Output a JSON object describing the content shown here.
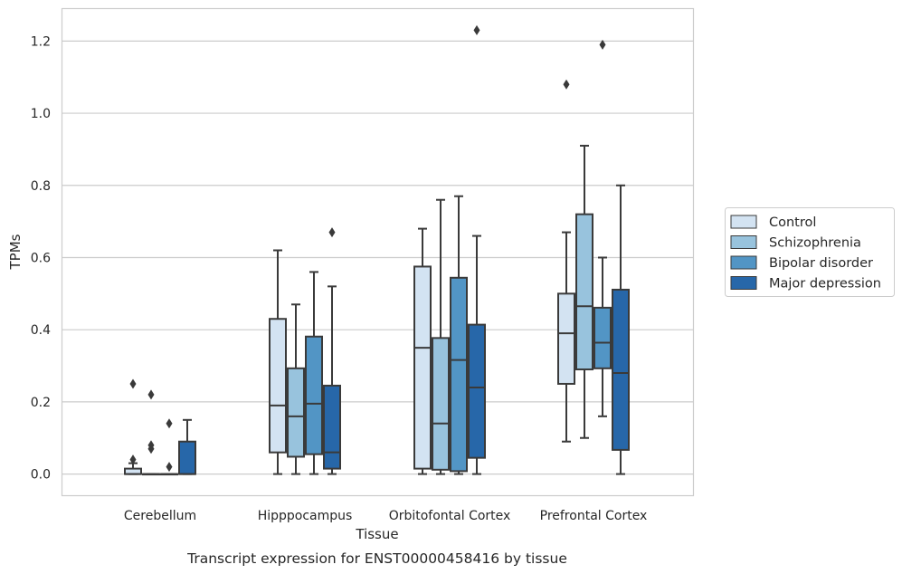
{
  "chart_data": {
    "type": "box",
    "caption": "Transcript expression for ENST00000458416 by tissue",
    "xlabel": "Tissue",
    "ylabel": "TPMs",
    "ylim": [
      -0.06,
      1.29
    ],
    "yticks": [
      0.0,
      0.2,
      0.4,
      0.6,
      0.8,
      1.0,
      1.2
    ],
    "ytick_labels": [
      "0.0",
      "0.2",
      "0.4",
      "0.6",
      "0.8",
      "1.0",
      "1.2"
    ],
    "grid": "horizontal",
    "legend_position": "right",
    "categories": [
      "Cerebellum",
      "Hipppocampus",
      "Orbitofontal Cortex",
      "Prefrontal Cortex"
    ],
    "series": [
      {
        "name": "Control",
        "color": "#d3e3f2",
        "boxes": [
          {
            "whislo": 0.0,
            "q1": 0.0,
            "med": 0.0,
            "q3": 0.015,
            "whishi": 0.03,
            "fliers": [
              0.04,
              0.25
            ]
          },
          {
            "whislo": 0.0,
            "q1": 0.06,
            "med": 0.19,
            "q3": 0.43,
            "whishi": 0.62,
            "fliers": []
          },
          {
            "whislo": 0.0,
            "q1": 0.015,
            "med": 0.35,
            "q3": 0.575,
            "whishi": 0.68,
            "fliers": []
          },
          {
            "whislo": 0.09,
            "q1": 0.25,
            "med": 0.39,
            "q3": 0.5,
            "whishi": 0.67,
            "fliers": [
              1.08
            ]
          }
        ]
      },
      {
        "name": "Schizophrenia",
        "color": "#98c3dd",
        "boxes": [
          {
            "whislo": 0.0,
            "q1": 0.0,
            "med": 0.0,
            "q3": 0.0,
            "whishi": 0.0,
            "fliers": [
              0.07,
              0.08,
              0.22
            ]
          },
          {
            "whislo": 0.0,
            "q1": 0.048,
            "med": 0.16,
            "q3": 0.293,
            "whishi": 0.47,
            "fliers": []
          },
          {
            "whislo": 0.0,
            "q1": 0.012,
            "med": 0.14,
            "q3": 0.377,
            "whishi": 0.76,
            "fliers": []
          },
          {
            "whislo": 0.1,
            "q1": 0.29,
            "med": 0.465,
            "q3": 0.72,
            "whishi": 0.91,
            "fliers": []
          }
        ]
      },
      {
        "name": "Bipolar disorder",
        "color": "#5295c5",
        "boxes": [
          {
            "whislo": 0.0,
            "q1": 0.0,
            "med": 0.0,
            "q3": 0.0,
            "whishi": 0.0,
            "fliers": [
              0.02,
              0.14
            ]
          },
          {
            "whislo": 0.0,
            "q1": 0.055,
            "med": 0.195,
            "q3": 0.381,
            "whishi": 0.56,
            "fliers": []
          },
          {
            "whislo": 0.0,
            "q1": 0.008,
            "med": 0.316,
            "q3": 0.544,
            "whishi": 0.77,
            "fliers": []
          },
          {
            "whislo": 0.16,
            "q1": 0.293,
            "med": 0.364,
            "q3": 0.461,
            "whishi": 0.6,
            "fliers": [
              1.19
            ]
          }
        ]
      },
      {
        "name": "Major depression",
        "color": "#2767a9",
        "boxes": [
          {
            "whislo": 0.0,
            "q1": 0.0,
            "med": 0.0,
            "q3": 0.09,
            "whishi": 0.15,
            "fliers": []
          },
          {
            "whislo": 0.0,
            "q1": 0.015,
            "med": 0.06,
            "q3": 0.245,
            "whishi": 0.52,
            "fliers": [
              0.67
            ]
          },
          {
            "whislo": 0.0,
            "q1": 0.045,
            "med": 0.24,
            "q3": 0.414,
            "whishi": 0.66,
            "fliers": [
              1.23
            ]
          },
          {
            "whislo": 0.0,
            "q1": 0.067,
            "med": 0.28,
            "q3": 0.511,
            "whishi": 0.8,
            "fliers": []
          }
        ]
      }
    ]
  }
}
